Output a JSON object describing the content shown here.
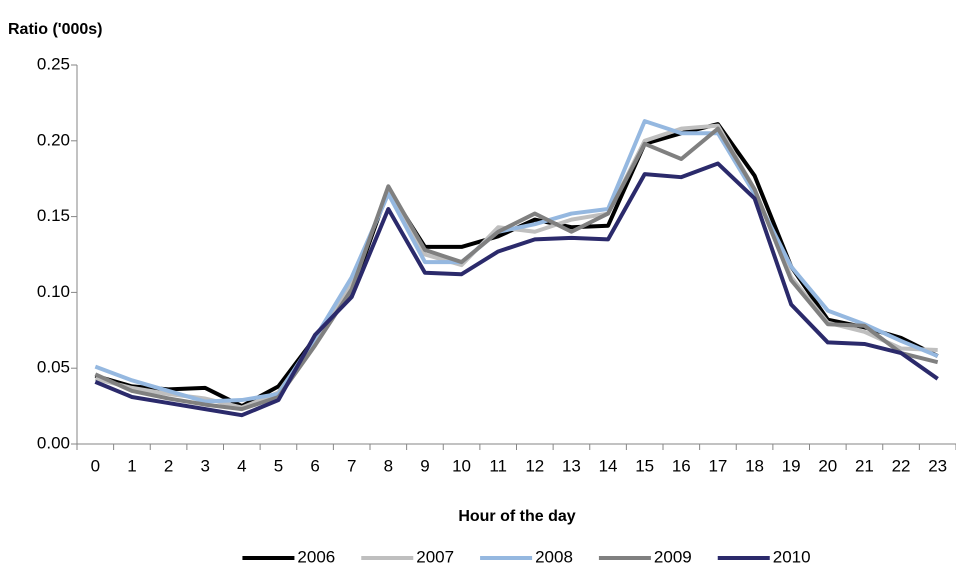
{
  "chart_data": {
    "type": "line",
    "title": "Ratio ('000s)",
    "x_label": "Hour of the day",
    "categories": [
      "0",
      "1",
      "2",
      "3",
      "4",
      "5",
      "6",
      "7",
      "8",
      "9",
      "10",
      "11",
      "12",
      "13",
      "14",
      "15",
      "16",
      "17",
      "18",
      "19",
      "20",
      "21",
      "22",
      "23"
    ],
    "ylim": [
      0,
      0.25
    ],
    "yticks": [
      {
        "value": 0,
        "label": "0.00"
      },
      0.05,
      {
        "value": 0.1,
        "label": "0.10"
      },
      0.15,
      {
        "value": 0.2,
        "label": "0.20"
      },
      0.25
    ],
    "grid": false,
    "legend": "bottom",
    "series": [
      {
        "name": "2006",
        "color": "#000000",
        "values": [
          0.045,
          0.038,
          0.036,
          0.037,
          0.025,
          0.038,
          0.07,
          0.1,
          0.168,
          0.13,
          0.13,
          0.137,
          0.148,
          0.143,
          0.144,
          0.198,
          0.205,
          0.211,
          0.177,
          0.117,
          0.082,
          0.077,
          0.07,
          0.058
        ]
      },
      {
        "name": "2007",
        "color": "#bfbfbf",
        "values": [
          0.043,
          0.037,
          0.033,
          0.03,
          0.024,
          0.034,
          0.068,
          0.105,
          0.168,
          0.125,
          0.118,
          0.143,
          0.14,
          0.148,
          0.152,
          0.2,
          0.208,
          0.21,
          0.168,
          0.11,
          0.08,
          0.074,
          0.063,
          0.062
        ]
      },
      {
        "name": "2008",
        "color": "#95b8e0",
        "values": [
          0.051,
          0.042,
          0.035,
          0.028,
          0.029,
          0.033,
          0.07,
          0.11,
          0.165,
          0.12,
          0.12,
          0.14,
          0.145,
          0.152,
          0.155,
          0.213,
          0.205,
          0.205,
          0.165,
          0.117,
          0.088,
          0.079,
          0.068,
          0.058
        ]
      },
      {
        "name": "2009",
        "color": "#808080",
        "values": [
          0.046,
          0.035,
          0.03,
          0.026,
          0.023,
          0.031,
          0.065,
          0.102,
          0.17,
          0.128,
          0.12,
          0.14,
          0.152,
          0.14,
          0.152,
          0.198,
          0.188,
          0.208,
          0.168,
          0.108,
          0.079,
          0.078,
          0.06,
          0.054
        ]
      },
      {
        "name": "2010",
        "color": "#2b2a6b",
        "values": [
          0.041,
          0.031,
          0.027,
          0.023,
          0.019,
          0.029,
          0.072,
          0.097,
          0.155,
          0.113,
          0.112,
          0.127,
          0.135,
          0.136,
          0.135,
          0.178,
          0.176,
          0.185,
          0.162,
          0.092,
          0.067,
          0.066,
          0.06,
          0.043
        ]
      }
    ]
  }
}
